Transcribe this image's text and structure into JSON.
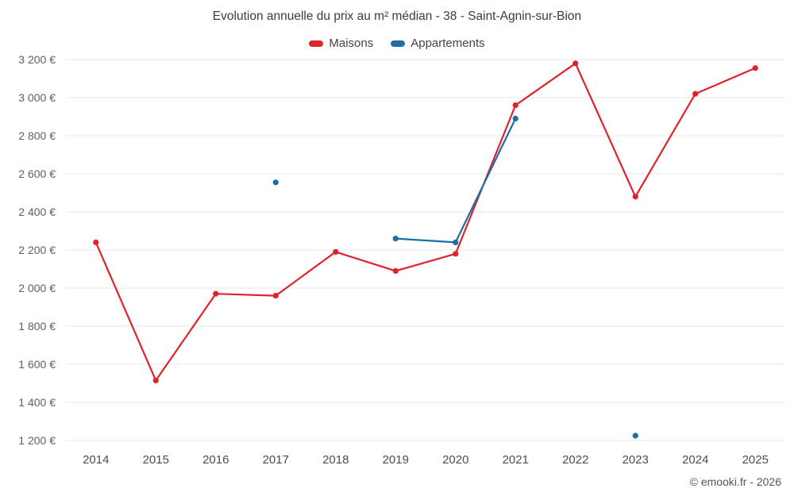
{
  "chart_data": {
    "type": "line",
    "title": "Evolution annuelle du prix au m² médian - 38 - Saint-Agnin-sur-Bion",
    "categories": [
      "2014",
      "2015",
      "2016",
      "2017",
      "2018",
      "2019",
      "2020",
      "2021",
      "2022",
      "2023",
      "2024",
      "2025"
    ],
    "series": [
      {
        "name": "Maisons",
        "color": "#e0232a",
        "values": [
          2240,
          1515,
          1970,
          1960,
          2190,
          2090,
          2180,
          2960,
          3180,
          2480,
          3020,
          3155
        ]
      },
      {
        "name": "Appartements",
        "color": "#1c6ea4",
        "values": [
          null,
          null,
          null,
          2555,
          null,
          2260,
          2240,
          2890,
          null,
          1225,
          null,
          null
        ]
      }
    ],
    "xlabel": "",
    "ylabel": "",
    "ylim": [
      1200,
      3200
    ],
    "ytick_step": 200,
    "y_unit": "€",
    "grid": true,
    "legend_position": "top"
  },
  "footer": {
    "copyright": "© emooki.fr - 2026"
  }
}
